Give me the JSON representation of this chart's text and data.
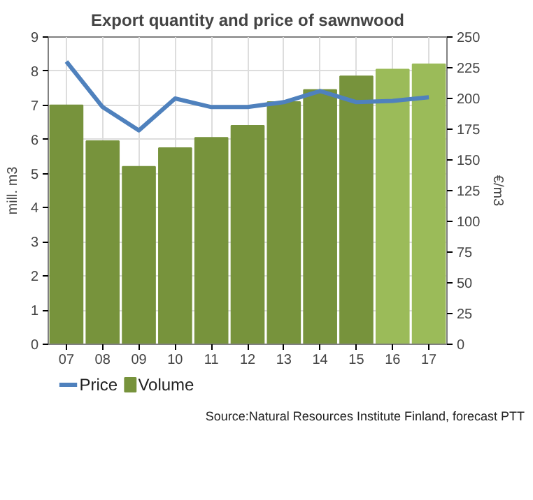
{
  "chart_data": {
    "type": "bar",
    "title": "Export quantity and price of sawnwood",
    "ylabel": "mill. m3",
    "y2label": "€/m3",
    "categories": [
      "07",
      "08",
      "09",
      "10",
      "11",
      "12",
      "13",
      "14",
      "15",
      "16",
      "17"
    ],
    "series": [
      {
        "name": "Volume",
        "colors": [
          "#77933c",
          "#77933c",
          "#77933c",
          "#77933c",
          "#77933c",
          "#77933c",
          "#77933c",
          "#77933c",
          "#77933c",
          "#9bbb59",
          "#9bbb59"
        ],
        "values": [
          7.0,
          5.95,
          5.2,
          5.75,
          6.05,
          6.4,
          7.1,
          7.45,
          7.85,
          8.05,
          8.2
        ]
      },
      {
        "name": "Price",
        "type": "line",
        "axis": "y2",
        "color": "#4f81bd",
        "values": [
          230,
          193,
          174,
          200,
          193,
          193,
          197,
          206,
          197,
          198,
          201
        ]
      }
    ],
    "ylim": [
      0,
      9
    ],
    "yticks": [
      0,
      1,
      2,
      3,
      4,
      5,
      6,
      7,
      8,
      9
    ],
    "y2lim": [
      0,
      250
    ],
    "y2ticks": [
      0,
      25,
      50,
      75,
      100,
      125,
      150,
      175,
      200,
      225,
      250
    ],
    "grid": true,
    "legend": "bottom left",
    "annotations": [
      "Source:Natural Resources Institute Finland, forecast PTT"
    ]
  }
}
